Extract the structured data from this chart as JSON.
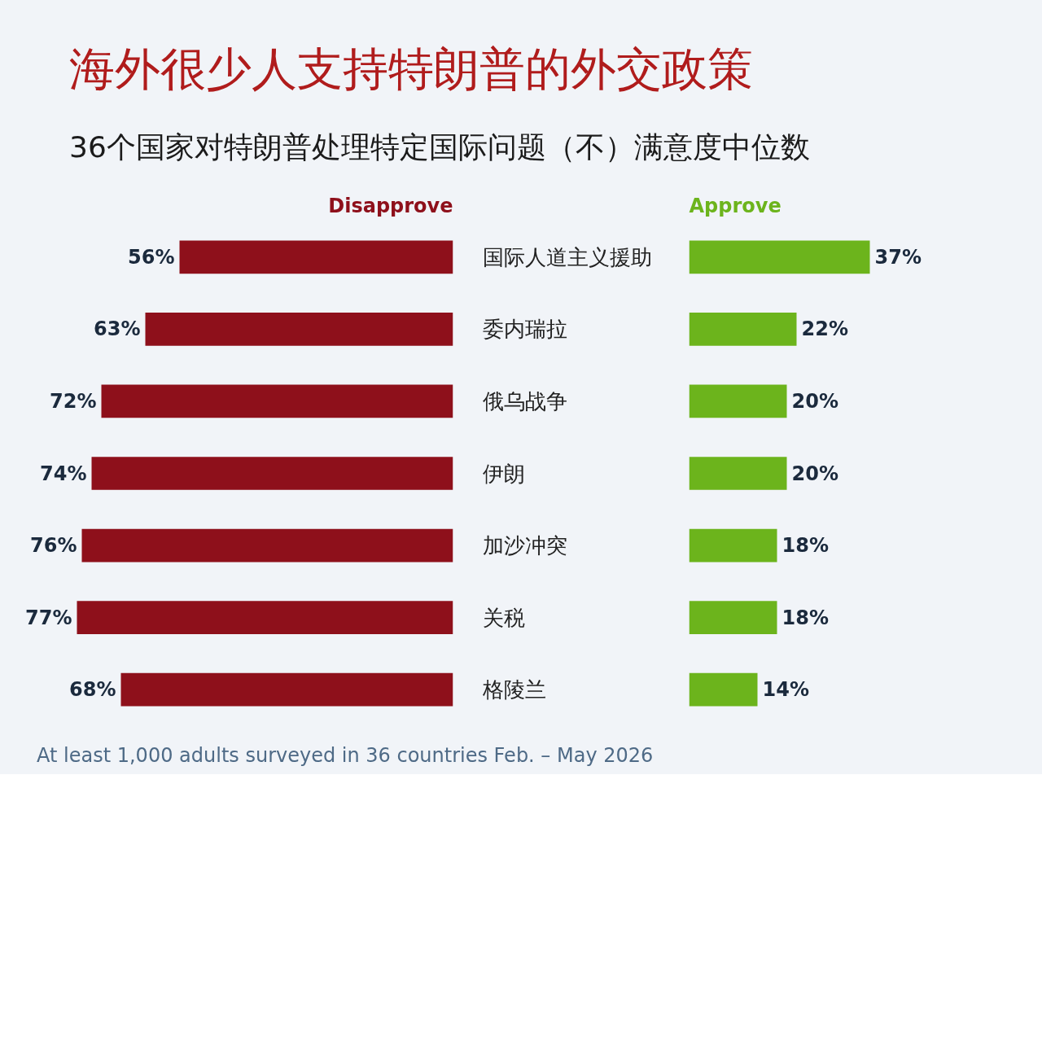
{
  "chart_data": [
    {
      "type": "bar",
      "orientation": "horizontal",
      "title": "海外很少人支持特朗普的外交政策",
      "subtitle": "36个国家对特朗普处理特定国际问题（不）满意度中位数",
      "annotations": [
        "At least 1,000 adults surveyed in 36 countries Feb. – May 2026"
      ],
      "categories": [
        "国际人道主义援助",
        "委内瑞拉",
        "俄乌战争",
        "伊朗",
        "加沙冲突",
        "关税",
        "格陵兰"
      ],
      "tick_labels": "y",
      "series": [
        {
          "name": "Disapprove",
          "color": "#8e101b",
          "values": [
            56,
            63,
            72,
            74,
            76,
            77,
            68
          ],
          "value_labels": [
            "56%",
            "63%",
            "72%",
            "74%",
            "76%",
            "77%",
            "68%"
          ]
        }
      ]
    },
    {
      "type": "bar",
      "orientation": "horizontal",
      "categories": [
        null,
        null,
        null,
        null,
        null,
        null,
        null
      ],
      "tick_labels": false,
      "series": [
        {
          "name": "Approve",
          "color": "#6cb41c",
          "values": [
            37,
            22,
            20,
            20,
            18,
            18,
            14
          ],
          "value_labels": [
            "37%",
            "22%",
            "20%",
            "20%",
            "18%",
            "18%",
            "14%"
          ]
        }
      ]
    }
  ]
}
